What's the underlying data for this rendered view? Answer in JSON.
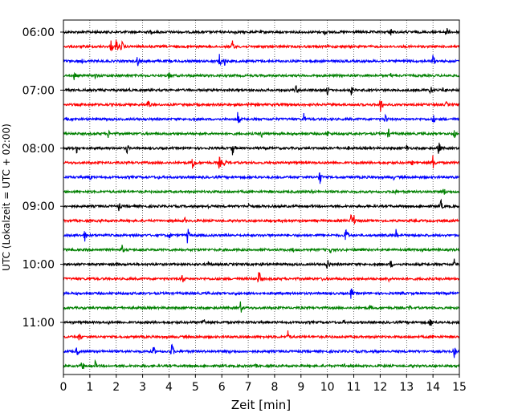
{
  "chart_data": {
    "type": "line",
    "title": "",
    "xlabel": "Zeit  [min]",
    "ylabel": "UTC (Lokalzeit = UTC + 02:00)",
    "xlim": [
      0,
      15
    ],
    "x_ticks": [
      0,
      1,
      2,
      3,
      4,
      5,
      6,
      7,
      8,
      9,
      10,
      11,
      12,
      13,
      14,
      15
    ],
    "y_tick_labels": [
      "06:00",
      "07:00",
      "08:00",
      "09:00",
      "10:00",
      "11:00"
    ],
    "grid": "vertical dotted",
    "trace_interval_minutes": 15,
    "colors": [
      "#000000",
      "#ff0000",
      "#0000ff",
      "#008000"
    ],
    "traces": [
      {
        "start": "06:00",
        "color": "#000000",
        "events": [
          [
            3.3,
            4
          ],
          [
            6.5,
            4
          ],
          [
            9.9,
            5
          ],
          [
            12.4,
            9
          ],
          [
            14.5,
            9
          ],
          [
            1.2,
            3
          ]
        ]
      },
      {
        "start": "06:15",
        "color": "#ff0000",
        "events": [
          [
            1.8,
            9
          ],
          [
            2.0,
            12
          ],
          [
            2.2,
            10
          ],
          [
            6.4,
            10
          ],
          [
            4.7,
            3
          ],
          [
            10.9,
            3
          ]
        ]
      },
      {
        "start": "06:30",
        "color": "#0000ff",
        "events": [
          [
            2.8,
            9
          ],
          [
            5.9,
            12
          ],
          [
            6.1,
            8
          ],
          [
            14.0,
            10
          ],
          [
            0.7,
            3
          ],
          [
            9.5,
            3
          ]
        ]
      },
      {
        "start": "06:45",
        "color": "#008000",
        "events": [
          [
            0.4,
            7
          ],
          [
            1.2,
            5
          ],
          [
            4.0,
            7
          ],
          [
            6.4,
            3
          ],
          [
            12.4,
            4
          ]
        ]
      },
      {
        "start": "07:00",
        "color": "#000000",
        "events": [
          [
            8.8,
            8
          ],
          [
            10.0,
            8
          ],
          [
            10.9,
            7
          ],
          [
            13.9,
            8
          ],
          [
            14.4,
            8
          ],
          [
            2.5,
            3
          ]
        ]
      },
      {
        "start": "07:15",
        "color": "#ff0000",
        "events": [
          [
            3.2,
            10
          ],
          [
            12.0,
            12
          ],
          [
            14.5,
            5
          ],
          [
            7.0,
            3
          ]
        ]
      },
      {
        "start": "07:30",
        "color": "#0000ff",
        "events": [
          [
            6.6,
            10
          ],
          [
            9.1,
            10
          ],
          [
            12.2,
            10
          ],
          [
            14.0,
            8
          ],
          [
            4.8,
            3
          ]
        ]
      },
      {
        "start": "07:45",
        "color": "#008000",
        "events": [
          [
            1.7,
            7
          ],
          [
            7.5,
            6
          ],
          [
            10.0,
            6
          ],
          [
            12.3,
            8
          ],
          [
            14.8,
            8
          ],
          [
            3.5,
            3
          ]
        ]
      },
      {
        "start": "08:00",
        "color": "#000000",
        "events": [
          [
            0.5,
            8
          ],
          [
            2.4,
            8
          ],
          [
            6.4,
            11
          ],
          [
            13.0,
            6
          ],
          [
            14.2,
            12
          ],
          [
            10.8,
            3
          ]
        ]
      },
      {
        "start": "08:15",
        "color": "#ff0000",
        "events": [
          [
            4.9,
            12
          ],
          [
            5.9,
            10
          ],
          [
            6.1,
            8
          ],
          [
            14.0,
            12
          ],
          [
            13.2,
            5
          ],
          [
            9.2,
            3
          ]
        ]
      },
      {
        "start": "08:30",
        "color": "#0000ff",
        "events": [
          [
            1.0,
            6
          ],
          [
            9.7,
            12
          ],
          [
            3.6,
            3
          ],
          [
            12.5,
            4
          ]
        ]
      },
      {
        "start": "08:45",
        "color": "#008000",
        "events": [
          [
            12.5,
            8
          ],
          [
            14.4,
            7
          ],
          [
            5.6,
            3
          ],
          [
            9.4,
            3
          ]
        ]
      },
      {
        "start": "09:00",
        "color": "#000000",
        "events": [
          [
            2.1,
            7
          ],
          [
            5.5,
            5
          ],
          [
            7.0,
            6
          ],
          [
            14.3,
            9
          ],
          [
            11.5,
            3
          ]
        ]
      },
      {
        "start": "09:15",
        "color": "#ff0000",
        "events": [
          [
            10.9,
            12
          ],
          [
            11.0,
            9
          ],
          [
            4.6,
            5
          ],
          [
            8.3,
            4
          ],
          [
            1.4,
            3
          ]
        ]
      },
      {
        "start": "09:30",
        "color": "#0000ff",
        "events": [
          [
            0.8,
            9
          ],
          [
            4.0,
            7
          ],
          [
            4.7,
            12
          ],
          [
            10.7,
            14
          ],
          [
            12.6,
            8
          ],
          [
            7.8,
            3
          ]
        ]
      },
      {
        "start": "09:45",
        "color": "#008000",
        "events": [
          [
            2.2,
            9
          ],
          [
            10.1,
            6
          ],
          [
            8.7,
            4
          ],
          [
            13.6,
            3
          ]
        ]
      },
      {
        "start": "10:00",
        "color": "#000000",
        "events": [
          [
            2.0,
            5
          ],
          [
            5.5,
            6
          ],
          [
            10.0,
            11
          ],
          [
            12.4,
            7
          ],
          [
            14.8,
            8
          ],
          [
            7.5,
            4
          ]
        ]
      },
      {
        "start": "10:15",
        "color": "#ff0000",
        "events": [
          [
            4.5,
            9
          ],
          [
            7.4,
            14
          ],
          [
            12.3,
            6
          ],
          [
            1.0,
            4
          ],
          [
            9.8,
            3
          ]
        ]
      },
      {
        "start": "10:30",
        "color": "#0000ff",
        "events": [
          [
            10.9,
            10
          ],
          [
            12.8,
            5
          ],
          [
            2.9,
            4
          ],
          [
            6.5,
            4
          ],
          [
            14.4,
            3
          ]
        ]
      },
      {
        "start": "10:45",
        "color": "#008000",
        "events": [
          [
            6.7,
            10
          ],
          [
            11.6,
            5
          ],
          [
            13.1,
            5
          ],
          [
            3.0,
            3
          ],
          [
            9.0,
            3
          ]
        ]
      },
      {
        "start": "11:00",
        "color": "#000000",
        "events": [
          [
            5.3,
            8
          ],
          [
            13.9,
            9
          ],
          [
            10.6,
            4
          ],
          [
            1.7,
            3
          ]
        ]
      },
      {
        "start": "11:15",
        "color": "#ff0000",
        "events": [
          [
            0.6,
            8
          ],
          [
            8.5,
            9
          ],
          [
            14.0,
            4
          ],
          [
            4.4,
            3
          ]
        ]
      },
      {
        "start": "11:30",
        "color": "#0000ff",
        "events": [
          [
            0.5,
            8
          ],
          [
            3.4,
            9
          ],
          [
            4.1,
            12
          ],
          [
            14.8,
            9
          ],
          [
            6.3,
            3
          ],
          [
            11.8,
            3
          ]
        ]
      },
      {
        "start": "11:45",
        "color": "#008000",
        "events": [
          [
            0.7,
            10
          ],
          [
            1.2,
            7
          ],
          [
            10.6,
            7
          ],
          [
            7.3,
            3
          ],
          [
            13.2,
            3
          ]
        ]
      }
    ]
  }
}
